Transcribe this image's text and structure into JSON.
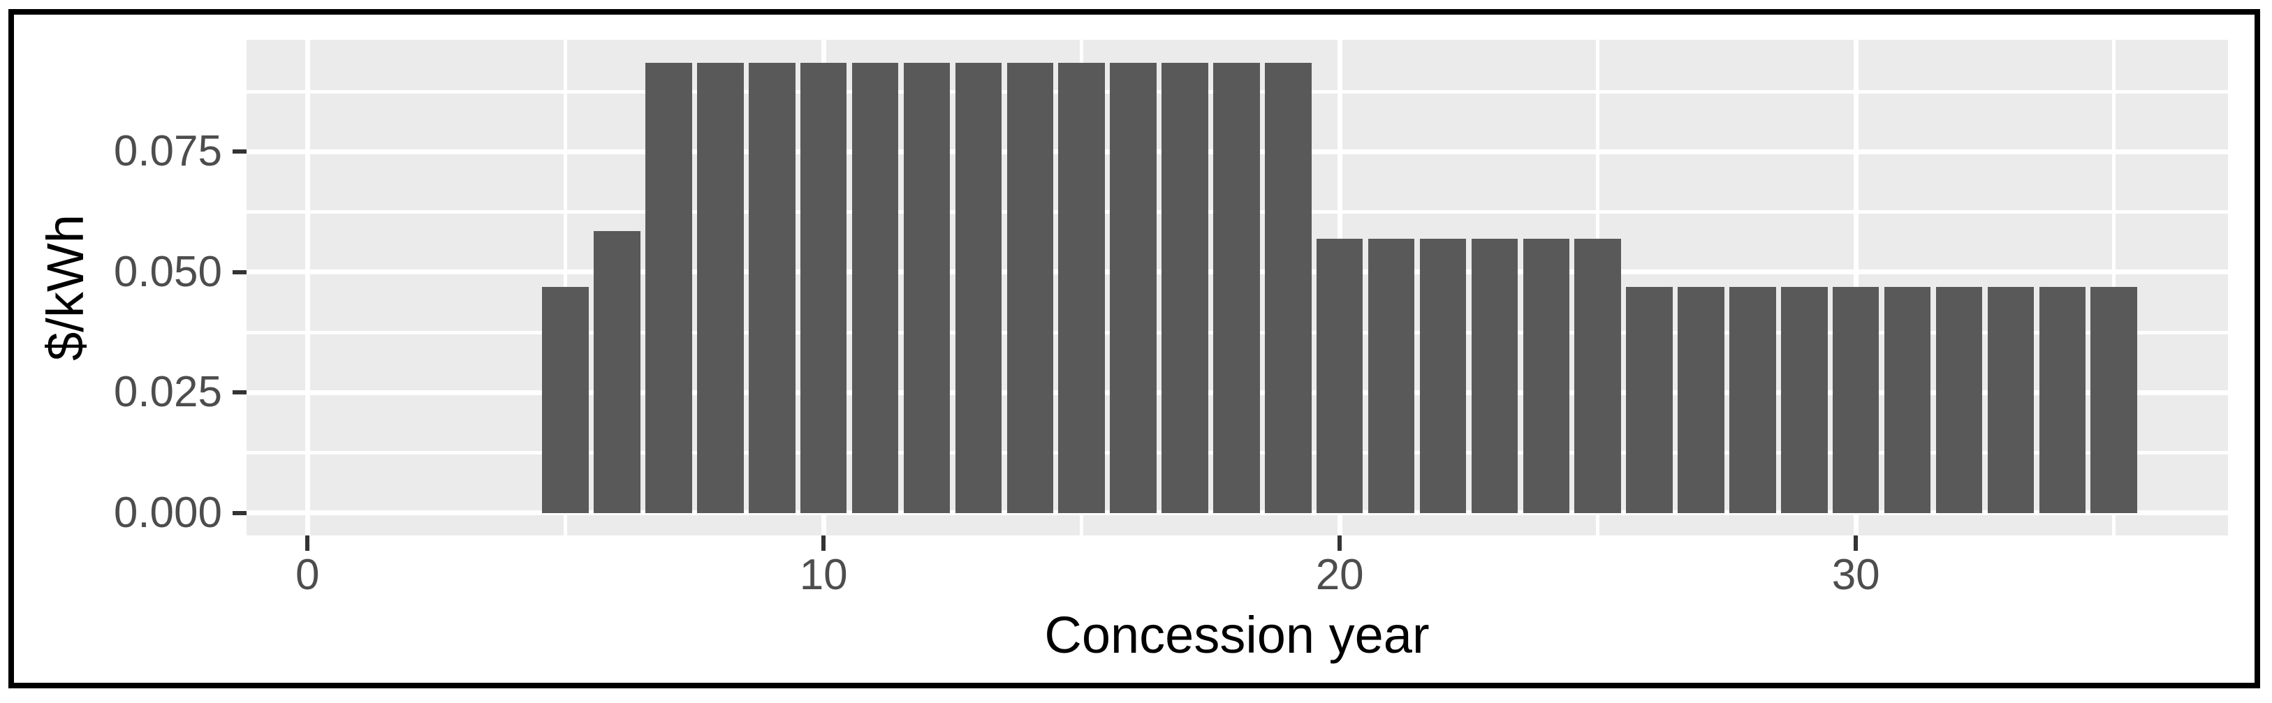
{
  "figure": {
    "background_color": "#ffffff",
    "border_color": "#000000"
  },
  "chart_data": {
    "type": "bar",
    "title": "",
    "xlabel": "Concession year",
    "ylabel": "$/kWh",
    "x": [
      5,
      6,
      7,
      8,
      9,
      10,
      11,
      12,
      13,
      14,
      15,
      16,
      17,
      18,
      19,
      20,
      21,
      22,
      23,
      24,
      25,
      26,
      27,
      28,
      29,
      30,
      31,
      32,
      33,
      34,
      35
    ],
    "values": [
      0.047,
      0.0585,
      0.0935,
      0.0935,
      0.0935,
      0.0935,
      0.0935,
      0.0935,
      0.0935,
      0.0935,
      0.0935,
      0.0935,
      0.0935,
      0.0935,
      0.0935,
      0.057,
      0.057,
      0.057,
      0.057,
      0.057,
      0.057,
      0.047,
      0.047,
      0.047,
      0.047,
      0.047,
      0.047,
      0.047,
      0.047,
      0.047,
      0.047
    ],
    "bar_width": 0.9,
    "xlim": [
      -1.18,
      37.21
    ],
    "ylim": [
      -0.00464,
      0.09826
    ],
    "x_tick_values": [
      0,
      10,
      20,
      30
    ],
    "x_tick_labels": [
      "0",
      "10",
      "20",
      "30"
    ],
    "y_tick_values": [
      0.0,
      0.025,
      0.05,
      0.075
    ],
    "y_tick_labels": [
      "0.000",
      "0.025",
      "0.050",
      "0.075"
    ],
    "x_minor_gridlines": [
      5,
      15,
      25,
      35
    ],
    "y_minor_gridlines": [
      0.0125,
      0.0375,
      0.0625,
      0.0875
    ],
    "grid": true,
    "legend_position": "none",
    "bar_color": "#595959",
    "panel_background": "#EBEBEB",
    "gridline_color": "#FFFFFF",
    "tick_mark_color": "#333333",
    "tick_label_color": "#4D4D4D",
    "axis_title_color": "#000000"
  }
}
